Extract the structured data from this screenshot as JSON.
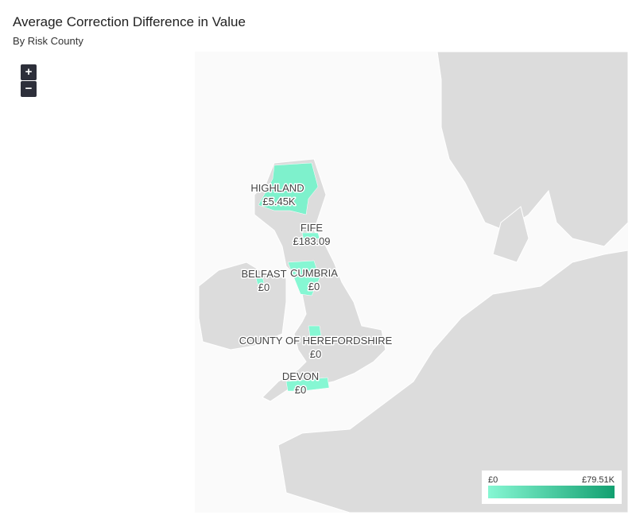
{
  "title": "Average Correction Difference in Value",
  "subtitle": "By Risk County",
  "controls": {
    "zoom_in": "+",
    "zoom_out": "−"
  },
  "regions": [
    {
      "name": "HIGHLAND",
      "value": 5450,
      "value_label": "£5.45K"
    },
    {
      "name": "FIFE",
      "value": 183.09,
      "value_label": "£183.09"
    },
    {
      "name": "BELFAST",
      "value": 0,
      "value_label": "£0"
    },
    {
      "name": "CUMBRIA",
      "value": 0,
      "value_label": "£0"
    },
    {
      "name": "COUNTY OF HEREFORDSHIRE",
      "value": 0,
      "value_label": "£0"
    },
    {
      "name": "DEVON",
      "value": 0,
      "value_label": "£0"
    }
  ],
  "legend": {
    "min": {
      "value": 0,
      "label": "£0"
    },
    "max": {
      "value": 79510,
      "label": "£79.51K"
    },
    "colors": [
      "#86f7d3",
      "#12a070"
    ]
  }
}
